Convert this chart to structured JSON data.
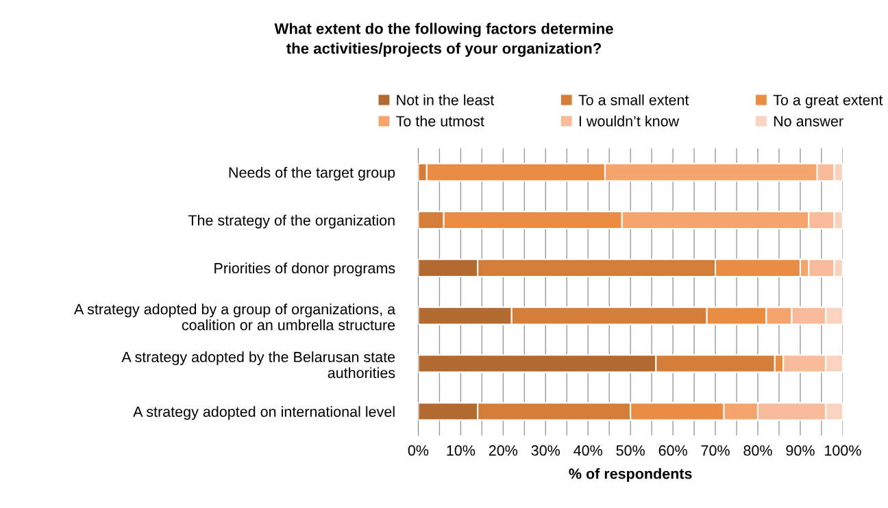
{
  "chart_data": {
    "type": "bar",
    "orientation": "horizontal",
    "stacked": true,
    "title": "What extent do the following factors determine\nthe activities/projects of your organization?",
    "xlabel": "% of respondents",
    "categories": [
      "Needs of the target group",
      "The strategy of the organization",
      "Priorities of donor programs",
      "A strategy adopted by a group of organizations, a\ncoalition or an umbrella structure",
      "A strategy adopted by the Belarusan state\nauthorities",
      "A strategy adopted on international level"
    ],
    "series": [
      {
        "name": "Not in the least",
        "color": "#b36a30",
        "values": [
          0,
          0,
          14,
          22,
          56,
          14
        ]
      },
      {
        "name": "To a small extent",
        "color": "#d37d38",
        "values": [
          2,
          6,
          56,
          46,
          28,
          36
        ]
      },
      {
        "name": "To a great extent",
        "color": "#ea8d42",
        "values": [
          42,
          42,
          20,
          14,
          2,
          22
        ]
      },
      {
        "name": "To the utmost",
        "color": "#f5a46c",
        "values": [
          50,
          44,
          2,
          6,
          0,
          8
        ]
      },
      {
        "name": "I wouldn’t know",
        "color": "#f7bb9a",
        "values": [
          4,
          6,
          6,
          8,
          10,
          16
        ]
      },
      {
        "name": "No answer",
        "color": "#f9d3bf",
        "values": [
          2,
          2,
          2,
          4,
          4,
          4
        ]
      }
    ],
    "xlim": [
      0,
      100
    ],
    "xticks": [
      {
        "value": 0,
        "label": "0%"
      },
      {
        "value": 5,
        "label": null
      },
      {
        "value": 10,
        "label": "10%"
      },
      {
        "value": 15,
        "label": null
      },
      {
        "value": 20,
        "label": "20%"
      },
      {
        "value": 25,
        "label": null
      },
      {
        "value": 30,
        "label": "30%"
      },
      {
        "value": 35,
        "label": null
      },
      {
        "value": 40,
        "label": "40%"
      },
      {
        "value": 45,
        "label": null
      },
      {
        "value": 50,
        "label": "50%"
      },
      {
        "value": 55,
        "label": null
      },
      {
        "value": 60,
        "label": "60%"
      },
      {
        "value": 65,
        "label": null
      },
      {
        "value": 70,
        "label": "70%"
      },
      {
        "value": 75,
        "label": null
      },
      {
        "value": 80,
        "label": "80%"
      },
      {
        "value": 85,
        "label": null
      },
      {
        "value": 90,
        "label": "90%"
      },
      {
        "value": 95,
        "label": null
      },
      {
        "value": 100,
        "label": "100%"
      }
    ],
    "grid": "x",
    "legend": "top"
  }
}
